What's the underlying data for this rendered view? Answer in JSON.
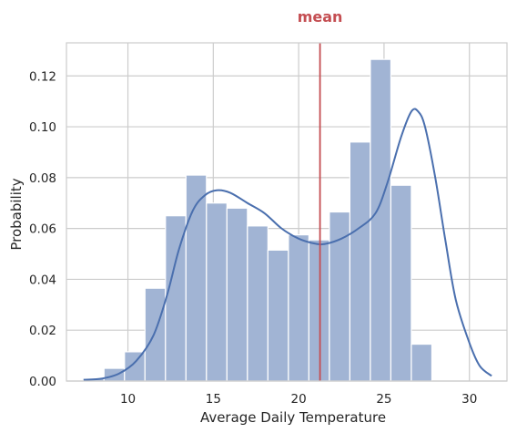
{
  "chart_data": {
    "type": "histogram",
    "xlabel": "Average Daily Temperature",
    "ylabel": "Probability",
    "xlim": [
      6.4,
      32.2
    ],
    "ylim": [
      0,
      0.133
    ],
    "xticks": [
      10,
      15,
      20,
      25,
      30
    ],
    "yticks": [
      0.0,
      0.02,
      0.04,
      0.06,
      0.08,
      0.1,
      0.12
    ],
    "grid": true,
    "bars": {
      "bin_start": 7.4,
      "bin_width": 1.2,
      "values": [
        0.001,
        0.005,
        0.0115,
        0.0365,
        0.065,
        0.081,
        0.07,
        0.068,
        0.061,
        0.0515,
        0.0575,
        0.0555,
        0.0665,
        0.094,
        0.1265,
        0.077,
        0.0145
      ],
      "color": "#a1b4d4",
      "edge_color": "#ffffff"
    },
    "kde": {
      "color": "#4a6fae",
      "x": [
        7.4,
        8.5,
        9.5,
        10.5,
        11.5,
        12.3,
        13.0,
        13.8,
        14.5,
        15.2,
        16.0,
        17.0,
        18.0,
        19.0,
        20.0,
        21.0,
        21.6,
        22.5,
        23.5,
        24.5,
        25.2,
        26.0,
        26.6,
        27.0,
        27.4,
        28.0,
        28.6,
        29.2,
        30.0,
        30.6,
        31.3
      ],
      "y": [
        0.0005,
        0.001,
        0.003,
        0.008,
        0.018,
        0.034,
        0.052,
        0.067,
        0.073,
        0.075,
        0.074,
        0.07,
        0.066,
        0.06,
        0.056,
        0.054,
        0.054,
        0.056,
        0.06,
        0.066,
        0.078,
        0.096,
        0.106,
        0.106,
        0.1,
        0.08,
        0.055,
        0.032,
        0.015,
        0.006,
        0.002
      ]
    },
    "mean": {
      "label": "mean",
      "value": 21.25,
      "color": "#c44e52"
    }
  }
}
